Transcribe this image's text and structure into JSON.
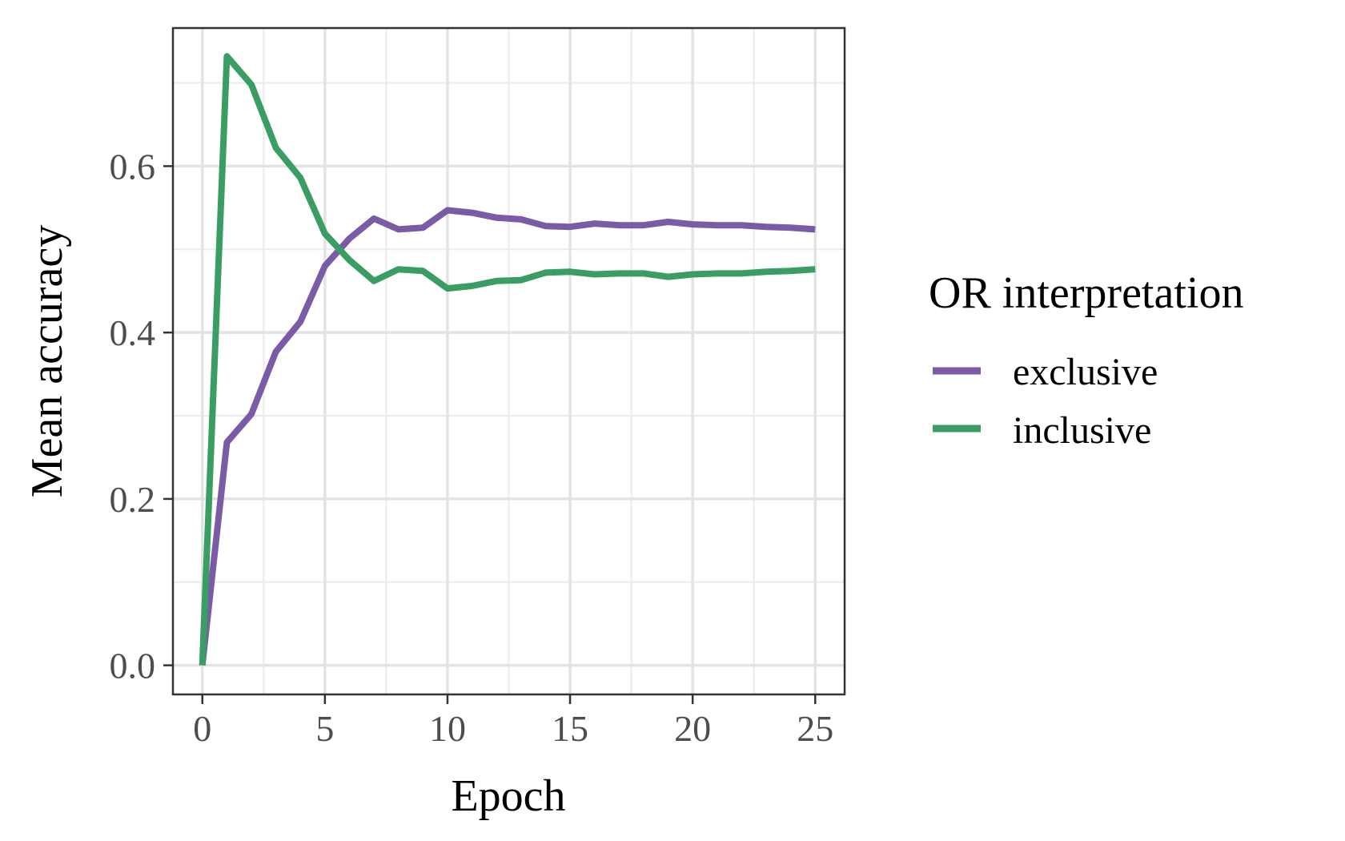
{
  "chart_data": {
    "type": "line",
    "title": "",
    "xlabel": "Epoch",
    "ylabel": "Mean accuracy",
    "xlim": [
      -1.2,
      26.2
    ],
    "ylim": [
      -0.035,
      0.766
    ],
    "x_ticks": [
      0,
      5,
      10,
      15,
      20,
      25
    ],
    "x_tick_labels": [
      "0",
      "5",
      "10",
      "15",
      "20",
      "25"
    ],
    "y_ticks": [
      0.0,
      0.2,
      0.4,
      0.6
    ],
    "y_tick_labels": [
      "0.0",
      "0.2",
      "0.4",
      "0.6"
    ],
    "grid": true,
    "legend": {
      "title": "OR interpretation",
      "placement": "right"
    },
    "x": [
      0,
      1,
      2,
      3,
      4,
      5,
      6,
      7,
      8,
      9,
      10,
      11,
      12,
      13,
      14,
      15,
      16,
      17,
      18,
      19,
      20,
      21,
      22,
      23,
      24,
      25
    ],
    "series": [
      {
        "name": "exclusive",
        "color": "#7b5aa6",
        "values": [
          0.0,
          0.268,
          0.302,
          0.377,
          0.413,
          0.48,
          0.513,
          0.537,
          0.524,
          0.526,
          0.547,
          0.544,
          0.538,
          0.536,
          0.528,
          0.527,
          0.531,
          0.529,
          0.529,
          0.533,
          0.53,
          0.529,
          0.529,
          0.527,
          0.526,
          0.524
        ]
      },
      {
        "name": "inclusive",
        "color": "#3a9e64",
        "values": [
          0.0,
          0.732,
          0.698,
          0.622,
          0.586,
          0.519,
          0.487,
          0.462,
          0.476,
          0.474,
          0.453,
          0.456,
          0.462,
          0.463,
          0.472,
          0.473,
          0.47,
          0.471,
          0.471,
          0.467,
          0.47,
          0.471,
          0.471,
          0.473,
          0.474,
          0.476
        ]
      }
    ]
  }
}
